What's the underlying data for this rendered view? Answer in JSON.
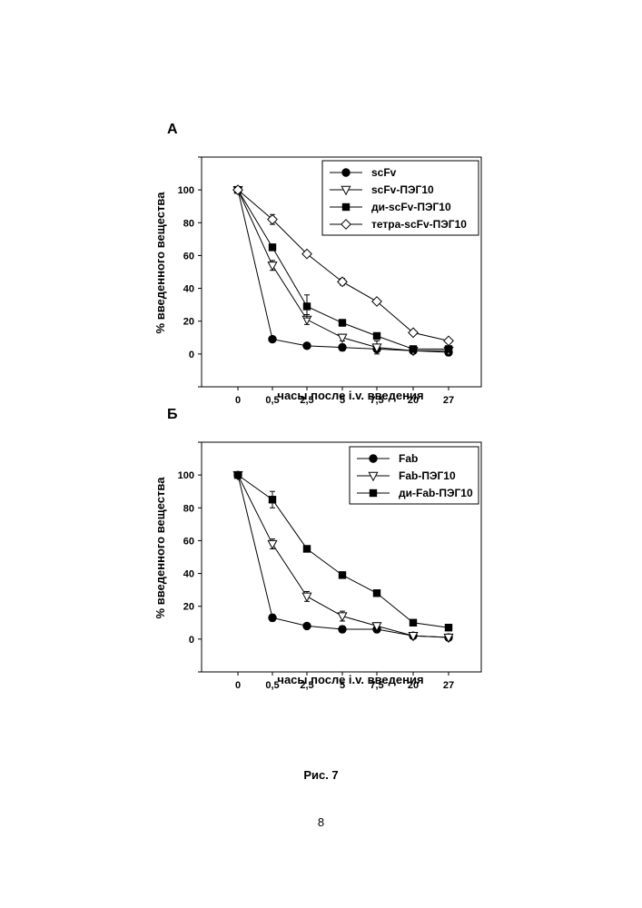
{
  "figure_caption": "Рис. 7",
  "page_number": "8",
  "chart_data": [
    {
      "type": "line",
      "panel_label": "А",
      "title": "",
      "xlabel": "часы после i.v. введения",
      "ylabel": "% введенного вещества",
      "categories": [
        "0",
        "0,5",
        "2,5",
        "5",
        "7,5",
        "20",
        "27"
      ],
      "ylim": [
        -20,
        120
      ],
      "yticks": [
        0,
        20,
        40,
        60,
        80,
        100
      ],
      "grid": false,
      "legend_position": "top-right",
      "series": [
        {
          "name": "scFv",
          "marker": "filled-circle",
          "values": [
            100,
            9,
            5,
            4,
            3,
            2,
            1
          ],
          "errors": [
            0,
            1,
            1,
            2,
            1,
            1,
            2
          ]
        },
        {
          "name": "scFv-ПЭГ10",
          "marker": "open-triangle-down",
          "values": [
            100,
            54,
            21,
            10,
            4,
            2,
            2
          ],
          "errors": [
            0,
            3,
            3,
            2,
            4,
            1,
            1
          ]
        },
        {
          "name": "ди-scFv-ПЭГ10",
          "marker": "filled-square",
          "values": [
            100,
            65,
            29,
            19,
            11,
            3,
            3
          ],
          "errors": [
            0,
            2,
            7,
            2,
            1,
            1,
            1
          ]
        },
        {
          "name": "тетра-scFv-ПЭГ10",
          "marker": "open-diamond",
          "values": [
            100,
            82,
            61,
            44,
            32,
            13,
            8
          ],
          "errors": [
            0,
            3,
            1,
            2,
            1,
            1,
            1
          ]
        }
      ]
    },
    {
      "type": "line",
      "panel_label": "Б",
      "title": "",
      "xlabel": "часы после i.v. введения",
      "ylabel": "% введенного вещества",
      "categories": [
        "0",
        "0,5",
        "2,5",
        "5",
        "7,5",
        "20",
        "27"
      ],
      "ylim": [
        -20,
        120
      ],
      "yticks": [
        0,
        20,
        40,
        60,
        80,
        100
      ],
      "grid": false,
      "legend_position": "top-right",
      "series": [
        {
          "name": "Fab",
          "marker": "filled-circle",
          "values": [
            100,
            13,
            8,
            6,
            6,
            2,
            1
          ],
          "errors": [
            0,
            2,
            1,
            2,
            2,
            1,
            1
          ]
        },
        {
          "name": "Fab-ПЭГ10",
          "marker": "open-triangle-down",
          "values": [
            100,
            58,
            26,
            14,
            8,
            2,
            1
          ],
          "errors": [
            0,
            3,
            3,
            3,
            2,
            1,
            2
          ]
        },
        {
          "name": "ди-Fab-ПЭГ10",
          "marker": "filled-square",
          "values": [
            100,
            85,
            55,
            39,
            28,
            10,
            7
          ],
          "errors": [
            0,
            5,
            1,
            2,
            1,
            1,
            1
          ]
        }
      ]
    }
  ]
}
